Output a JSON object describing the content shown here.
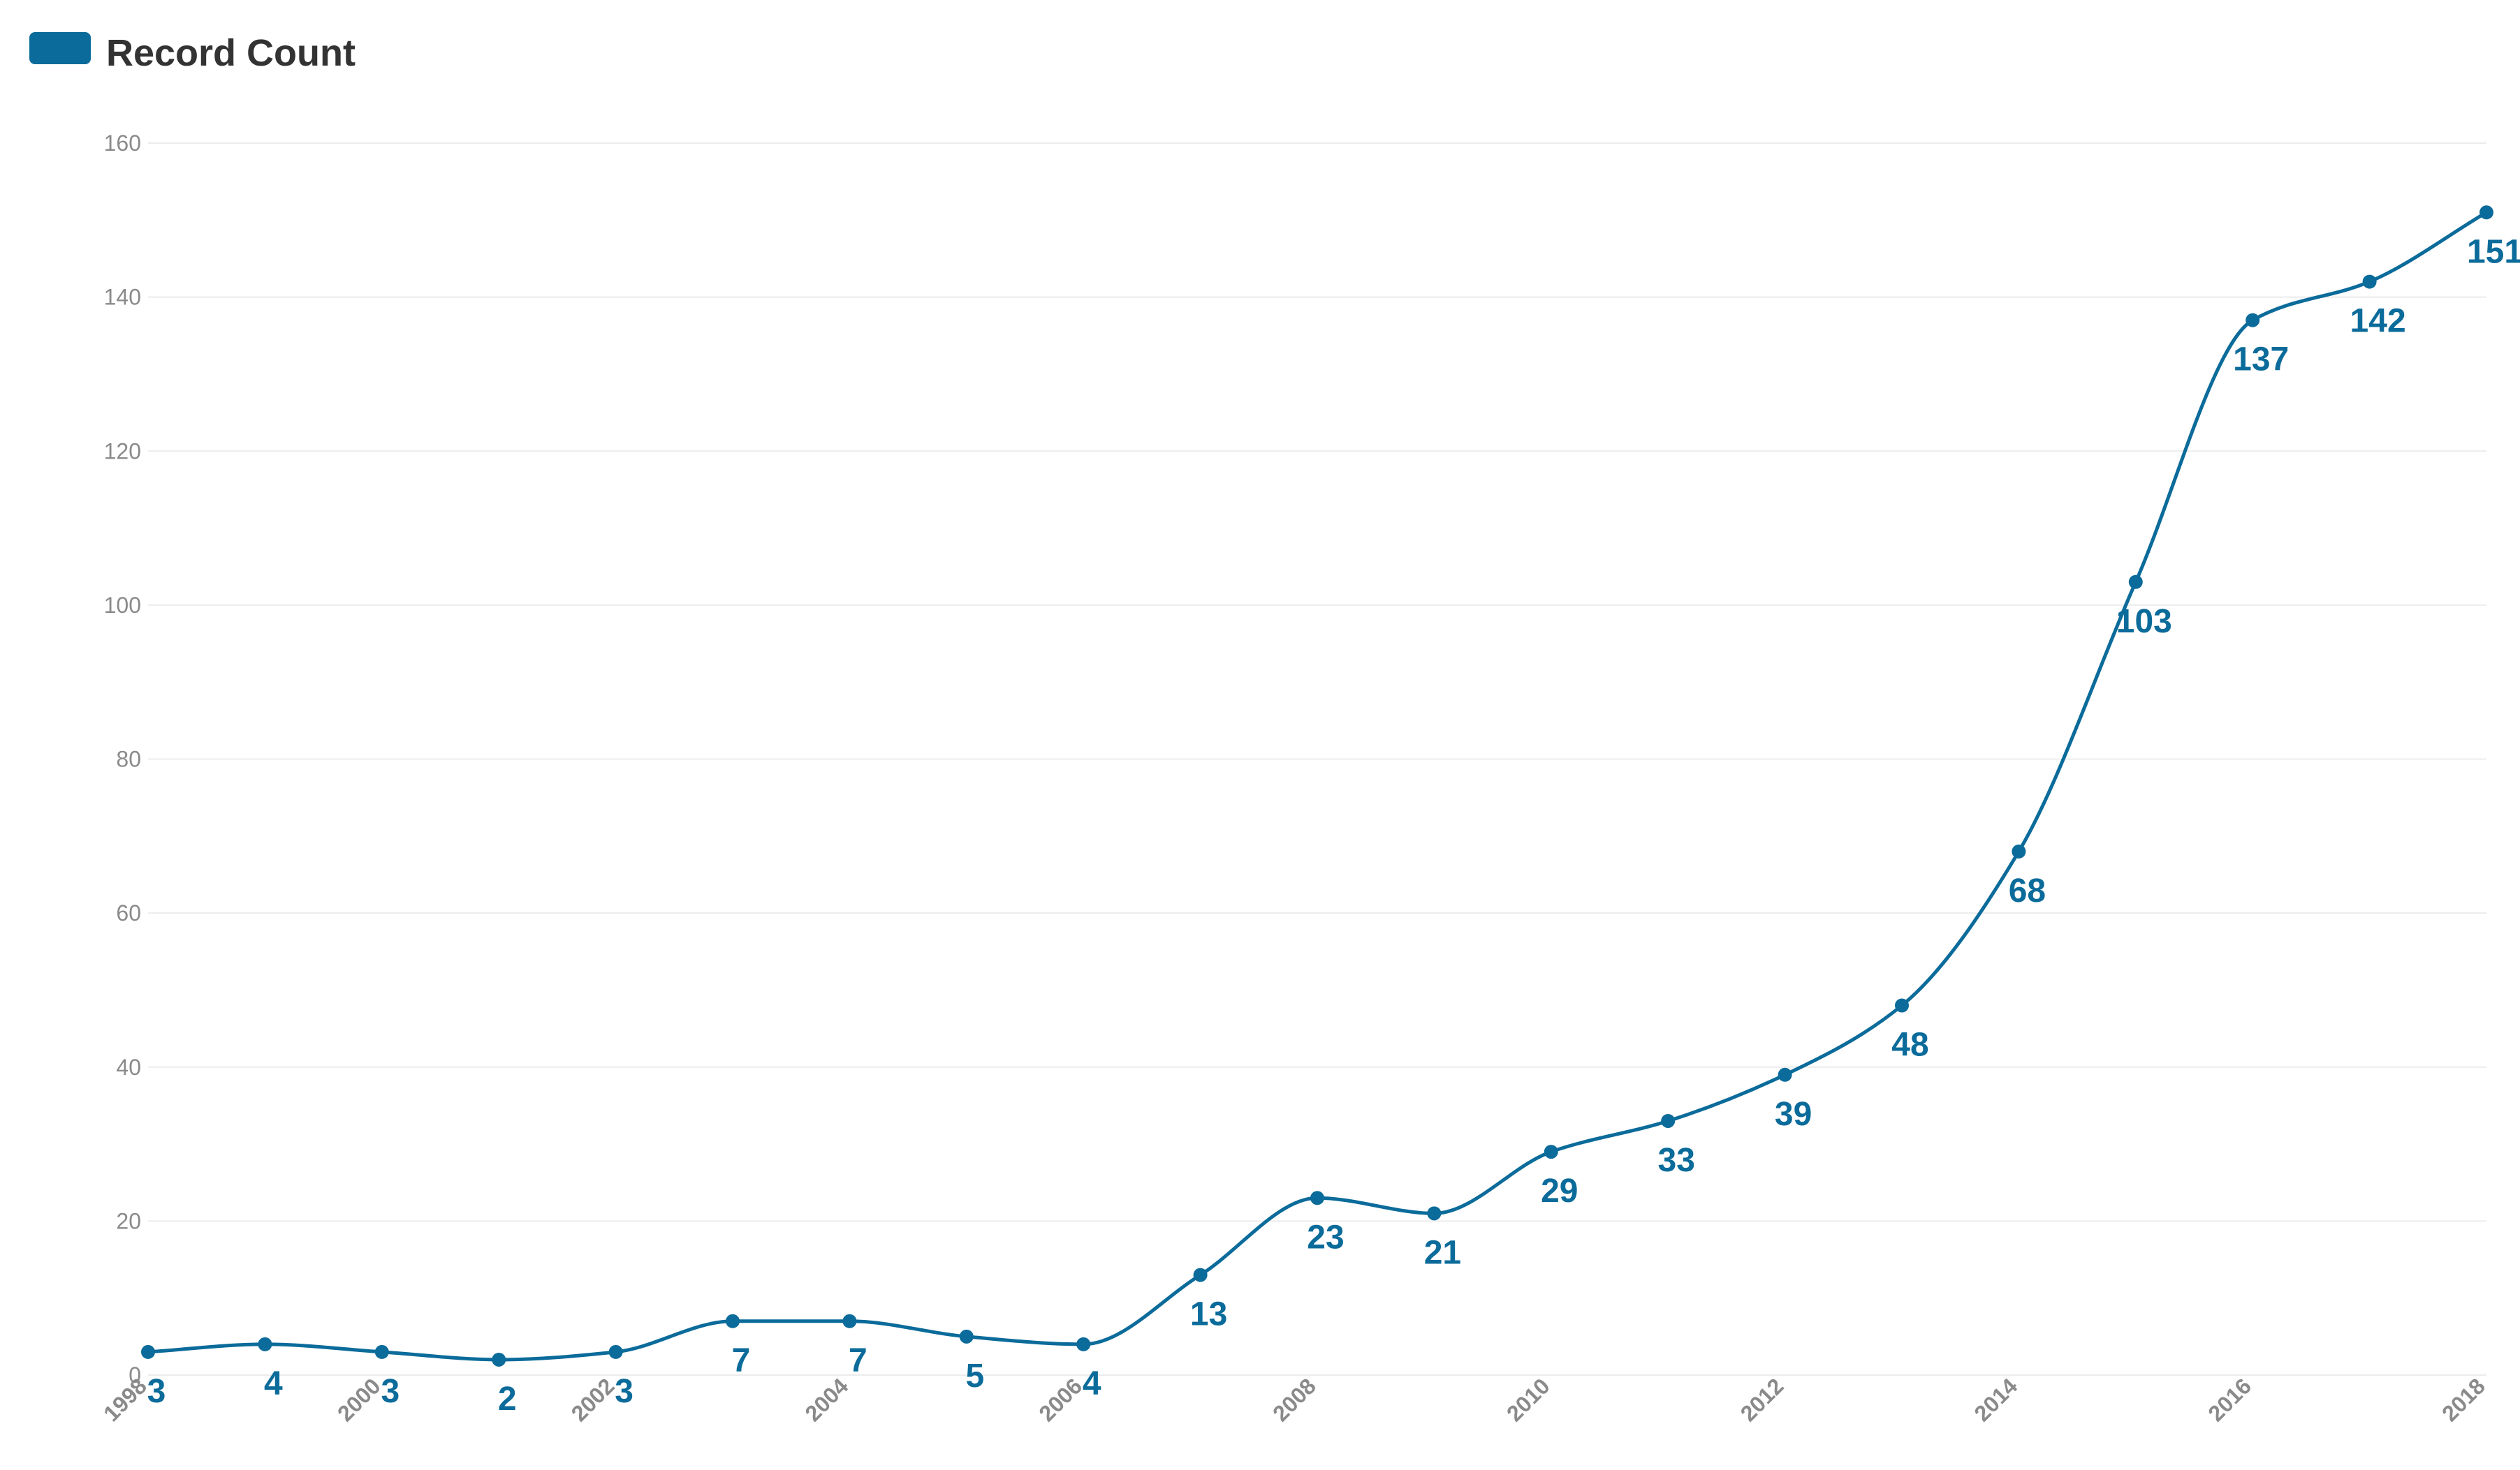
{
  "chart_data": {
    "type": "line",
    "x": [
      1998,
      1999,
      2000,
      2001,
      2002,
      2003,
      2004,
      2005,
      2006,
      2007,
      2008,
      2009,
      2010,
      2011,
      2012,
      2013,
      2014,
      2015,
      2016,
      2017,
      2018
    ],
    "x_tick_labels": [
      "1998",
      "2000",
      "2002",
      "2004",
      "2006",
      "2008",
      "2010",
      "2012",
      "2014",
      "2016",
      "2018"
    ],
    "y_tick_labels": [
      "0",
      "20",
      "40",
      "60",
      "80",
      "100",
      "120",
      "140",
      "160"
    ],
    "series": [
      {
        "name": "Record Count",
        "color": "#0b6b9a",
        "values": [
          3,
          4,
          3,
          2,
          3,
          7,
          7,
          5,
          4,
          13,
          23,
          21,
          29,
          33,
          39,
          48,
          68,
          103,
          137,
          142,
          151
        ]
      }
    ],
    "legend": {
      "label": "Record Count",
      "position": "top-left"
    },
    "ylim": [
      0,
      160
    ],
    "xlim": [
      1998,
      2018
    ],
    "grid": true,
    "title": "",
    "xlabel": "",
    "ylabel": ""
  }
}
